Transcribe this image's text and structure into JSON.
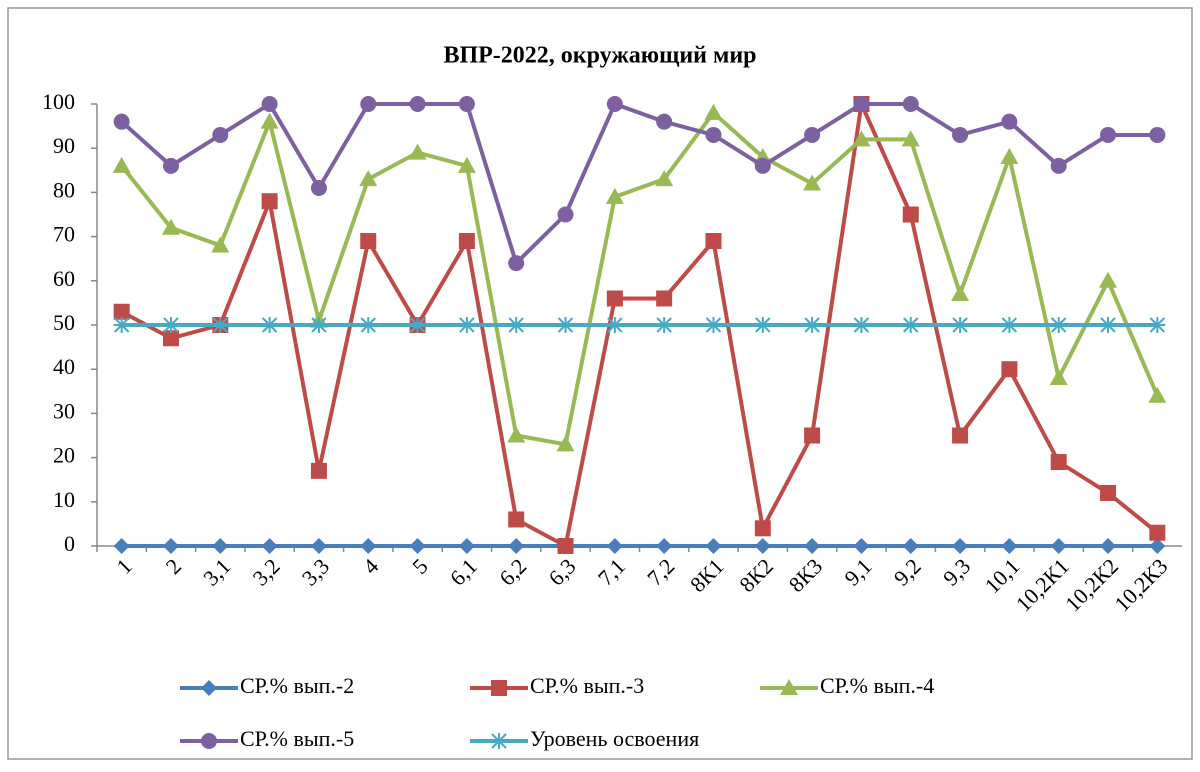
{
  "chart_data": {
    "type": "line",
    "title": "ВПР-2022, окружающий мир",
    "categories": [
      "1",
      "2",
      "3,1",
      "3,2",
      "3,3",
      "4",
      "5",
      "6,1",
      "6,2",
      "6,3",
      "7,1",
      "7,2",
      "8К1",
      "8К2",
      "8К3",
      "9,1",
      "9,2",
      "9,3",
      "10,1",
      "10,2К1",
      "10,2К2",
      "10,2К3"
    ],
    "series": [
      {
        "name": "СР.% вып.-2",
        "color": "#4a7ebb",
        "marker": "diamond",
        "values": [
          0,
          0,
          0,
          0,
          0,
          0,
          0,
          0,
          0,
          0,
          0,
          0,
          0,
          0,
          0,
          0,
          0,
          0,
          0,
          0,
          0,
          0
        ]
      },
      {
        "name": "СР.% вып.-3",
        "color": "#be4b48",
        "marker": "square",
        "values": [
          53,
          47,
          50,
          78,
          17,
          69,
          50,
          69,
          6,
          0,
          56,
          56,
          69,
          4,
          25,
          100,
          75,
          25,
          40,
          19,
          12,
          3
        ]
      },
      {
        "name": "СР.% вып.-4",
        "color": "#98b954",
        "marker": "triangle",
        "values": [
          86,
          72,
          68,
          96,
          51,
          83,
          89,
          86,
          25,
          23,
          79,
          83,
          98,
          88,
          82,
          92,
          92,
          57,
          88,
          38,
          60,
          34
        ]
      },
      {
        "name": "СР.% вып.-5",
        "color": "#7d60a0",
        "marker": "circle",
        "values": [
          96,
          86,
          93,
          100,
          81,
          100,
          100,
          100,
          64,
          75,
          100,
          96,
          93,
          86,
          93,
          100,
          100,
          93,
          96,
          86,
          93,
          93
        ]
      },
      {
        "name": "Уровень освоения",
        "color": "#46aac5",
        "marker": "asterisk",
        "values": [
          50,
          50,
          50,
          50,
          50,
          50,
          50,
          50,
          50,
          50,
          50,
          50,
          50,
          50,
          50,
          50,
          50,
          50,
          50,
          50,
          50,
          50
        ]
      }
    ],
    "ylim": [
      0,
      100
    ],
    "yticks": [
      0,
      10,
      20,
      30,
      40,
      50,
      60,
      70,
      80,
      90,
      100
    ],
    "grid": false,
    "legend": "bottom"
  }
}
